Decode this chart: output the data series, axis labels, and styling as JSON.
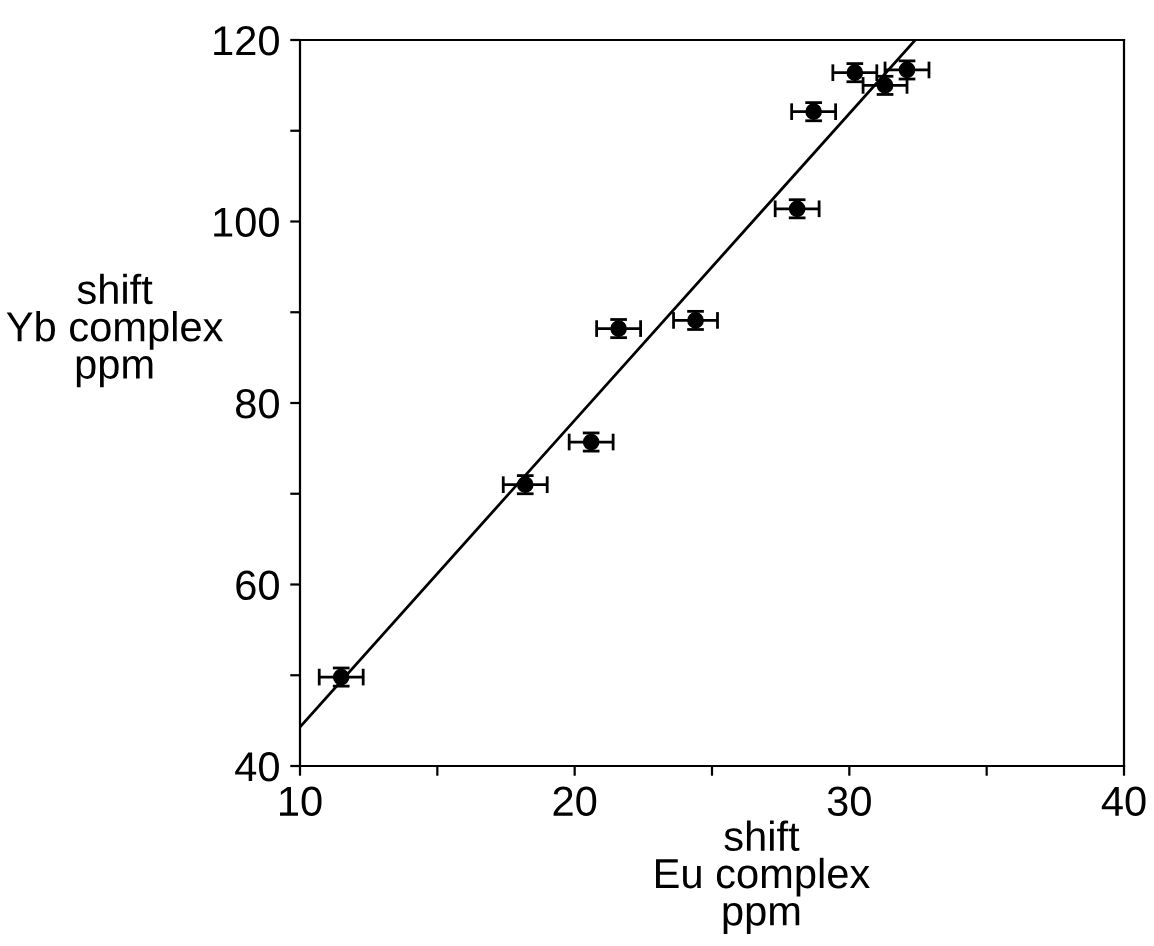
{
  "chart_data": {
    "type": "scatter",
    "xlabel": "shift\nEu complex\nppm",
    "ylabel": "shift\nYb complex\nppm",
    "xlim": [
      10,
      40
    ],
    "ylim": [
      40,
      120
    ],
    "xticks": [
      10,
      {
        "value": 15,
        "label": null
      },
      20,
      {
        "value": 25,
        "label": null
      },
      30,
      {
        "value": 35,
        "label": null
      },
      40
    ],
    "yticks": [
      40,
      {
        "value": 50,
        "label": null
      },
      60,
      {
        "value": 70,
        "label": null
      },
      80,
      {
        "value": 90,
        "label": null
      },
      100,
      {
        "value": 110,
        "label": null
      },
      120
    ],
    "grid": false,
    "legend": false,
    "marker": "circle",
    "series": [
      {
        "color": "#000000",
        "x": [
          11.5,
          18.2,
          20.6,
          21.6,
          24.4,
          28.1,
          28.7,
          30.2,
          31.3,
          32.1
        ],
        "values": [
          49.8,
          71.0,
          75.7,
          88.2,
          89.1,
          101.4,
          112.1,
          116.4,
          115.0,
          116.7
        ],
        "errors": [
          1,
          1,
          1,
          1,
          1,
          1,
          1,
          1,
          1,
          1
        ],
        "xerrors": [
          0.8,
          0.8,
          0.8,
          0.8,
          0.8,
          0.8,
          0.8,
          0.8,
          0.8,
          0.8
        ]
      },
      {
        "type": "line",
        "color": "#000000",
        "x": [
          10,
          32.4
        ],
        "values": [
          44.3,
          120
        ],
        "line_style": "solid",
        "marker": "none"
      }
    ]
  }
}
